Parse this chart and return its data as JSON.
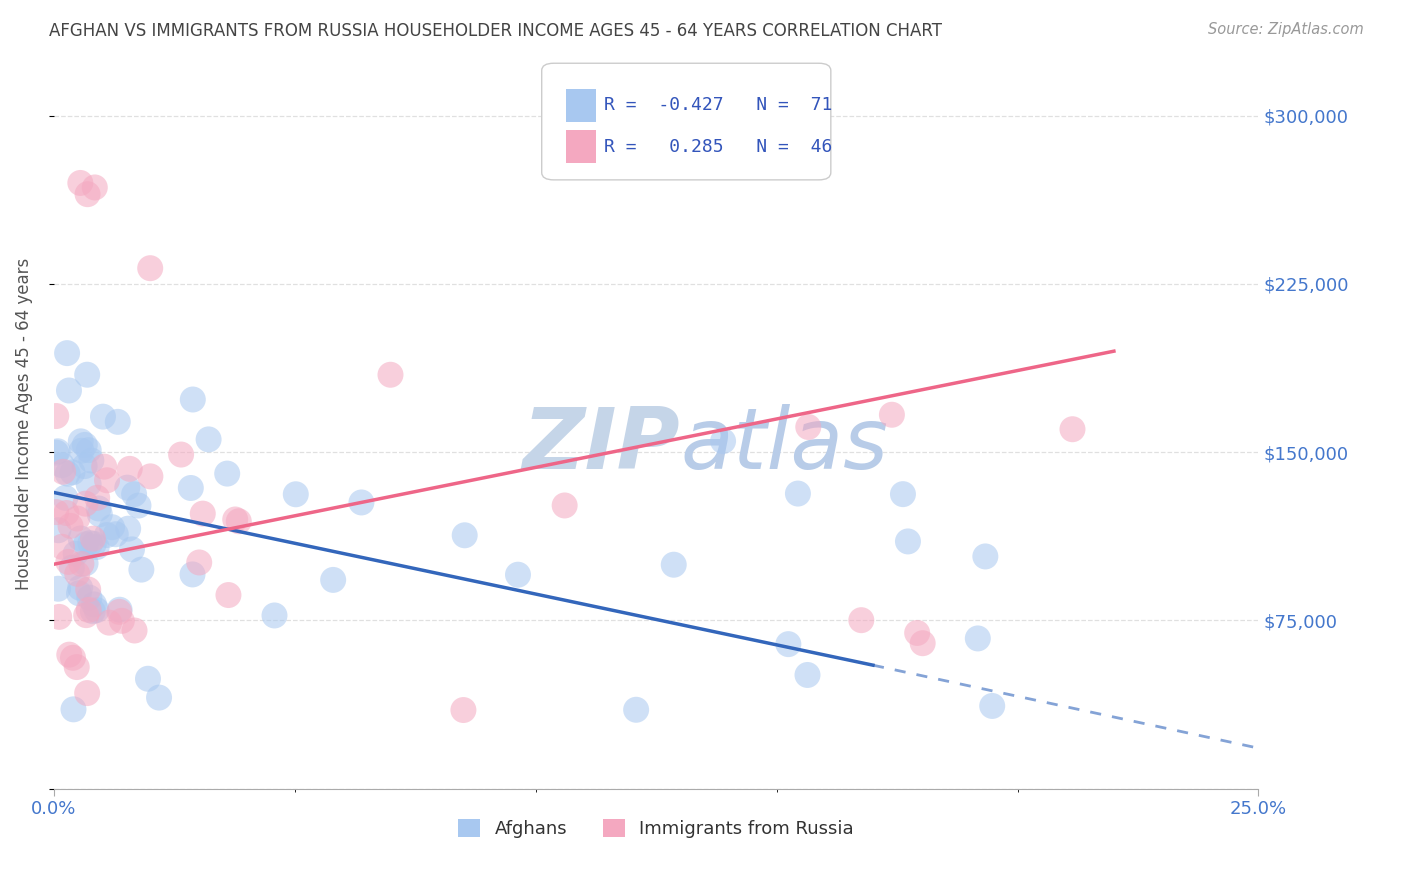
{
  "title": "AFGHAN VS IMMIGRANTS FROM RUSSIA HOUSEHOLDER INCOME AGES 45 - 64 YEARS CORRELATION CHART",
  "source": "Source: ZipAtlas.com",
  "ylabel": "Householder Income Ages 45 - 64 years",
  "xmin": 0.0,
  "xmax": 25.0,
  "ymin": 0,
  "ymax": 325000,
  "yticks": [
    0,
    75000,
    150000,
    225000,
    300000
  ],
  "ytick_labels": [
    "",
    "$75,000",
    "$150,000",
    "$225,000",
    "$300,000"
  ],
  "legend_label1": "Afghans",
  "legend_label2": "Immigrants from Russia",
  "r1": -0.427,
  "n1": 71,
  "r2": 0.285,
  "n2": 46,
  "color1": "#A8C8F0",
  "color2": "#F4A8C0",
  "line_color1": "#3366BB",
  "line_color2": "#EE6688",
  "watermark_color": "#D0DCF0",
  "background_color": "#FFFFFF",
  "grid_color": "#DDDDDD",
  "title_color": "#444444",
  "axis_label_color": "#555555",
  "tick_color": "#4477CC",
  "legend_text_color": "#333333",
  "legend_r_color": "#3355BB",
  "blue_line_x0": 0.0,
  "blue_line_y0": 132000,
  "blue_line_x1": 17.0,
  "blue_line_y1": 55000,
  "blue_dash_x0": 17.0,
  "blue_dash_y0": 55000,
  "blue_dash_x1": 25.0,
  "blue_dash_y1": 18000,
  "pink_line_x0": 0.0,
  "pink_line_y0": 100000,
  "pink_line_x1": 22.0,
  "pink_line_y1": 195000
}
